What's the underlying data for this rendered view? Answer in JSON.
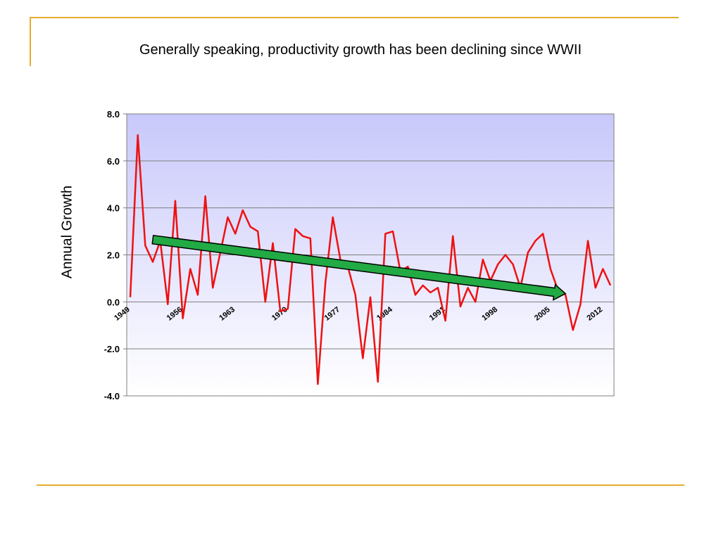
{
  "slide": {
    "title": "Generally speaking, productivity growth has been declining since WWII",
    "accent_color": "#e6ac2d"
  },
  "chart_data": {
    "type": "line",
    "title": "Generally speaking, productivity growth has been declining since WWII",
    "xlabel": "",
    "ylabel": "Annual Growth",
    "ylim": [
      -4.0,
      8.0
    ],
    "y_ticks": [
      "8.0",
      "6.0",
      "4.0",
      "2.0",
      "0.0",
      "-2.0",
      "-4.0"
    ],
    "x_ticks": [
      "1949",
      "1956",
      "1963",
      "1970",
      "1977",
      "1984",
      "1991",
      "1998",
      "2005",
      "2012"
    ],
    "xlim": [
      1949,
      2013
    ],
    "grid": true,
    "legend": "none",
    "series": [
      {
        "color": "#ee1111",
        "x": [
          1949,
          1950,
          1951,
          1952,
          1953,
          1954,
          1955,
          1956,
          1957,
          1958,
          1959,
          1960,
          1961,
          1962,
          1963,
          1964,
          1965,
          1966,
          1967,
          1968,
          1969,
          1970,
          1971,
          1972,
          1973,
          1974,
          1975,
          1976,
          1977,
          1978,
          1979,
          1980,
          1981,
          1982,
          1983,
          1984,
          1985,
          1986,
          1987,
          1988,
          1989,
          1990,
          1991,
          1992,
          1993,
          1994,
          1995,
          1996,
          1997,
          1998,
          1999,
          2000,
          2001,
          2002,
          2003,
          2004,
          2005,
          2006,
          2007,
          2008,
          2009,
          2010,
          2011,
          2012,
          2013
        ],
        "values": [
          0.2,
          7.1,
          2.4,
          1.7,
          2.6,
          -0.1,
          4.3,
          -0.7,
          1.4,
          0.3,
          4.5,
          0.6,
          2.1,
          3.6,
          2.9,
          3.9,
          3.2,
          3.0,
          0.0,
          2.5,
          -0.4,
          -0.3,
          3.1,
          2.8,
          2.7,
          -3.5,
          0.8,
          3.6,
          1.8,
          1.5,
          0.3,
          -2.4,
          0.2,
          -3.4,
          2.9,
          3.0,
          1.3,
          1.5,
          0.3,
          0.7,
          0.4,
          0.6,
          -0.8,
          2.8,
          -0.2,
          0.6,
          0.0,
          1.8,
          0.9,
          1.6,
          2.0,
          1.6,
          0.6,
          2.1,
          2.6,
          2.9,
          1.4,
          0.5,
          0.3,
          -1.2,
          -0.1,
          2.6,
          0.6,
          1.4,
          0.7
        ]
      }
    ],
    "trend_arrow": {
      "color": "#22aa44",
      "from": [
        1952,
        2.65
      ],
      "to": [
        2007,
        0.35
      ]
    }
  }
}
